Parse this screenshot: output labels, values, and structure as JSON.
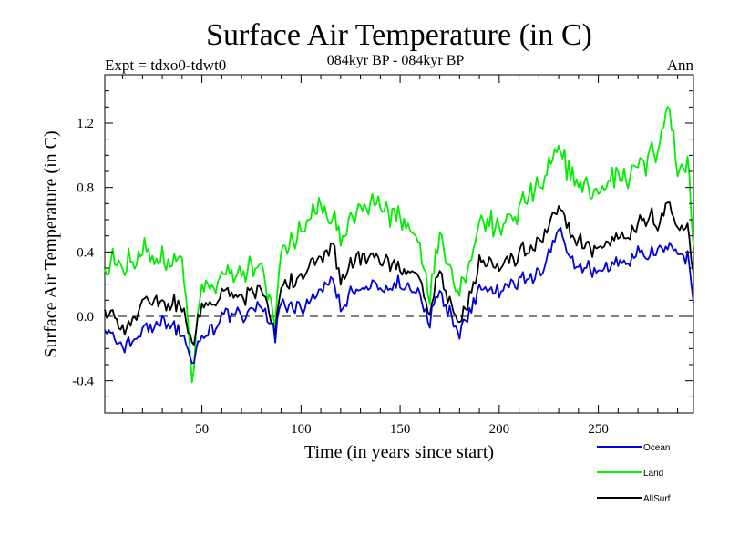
{
  "chart_data": {
    "type": "line",
    "title": "Surface Air Temperature (in C)",
    "subtitle": "084kyr BP - 084kyr BP",
    "left_label": "Expt = tdxo0-tdwt0",
    "right_label": "Ann",
    "xlabel": "Time (in years since start)",
    "ylabel": "Surface Air Temperature (in C)",
    "xlim": [
      1,
      298
    ],
    "ylim": [
      -0.6,
      1.5
    ],
    "x_ticks": [
      50,
      100,
      150,
      200,
      250
    ],
    "y_ticks": [
      -0.4,
      0.0,
      0.4,
      0.8,
      1.2
    ],
    "y_tick_labels": [
      "-0.4",
      "0.0",
      "0.4",
      "0.8",
      "1.2"
    ],
    "zero_line": "dashed",
    "legend_placement": "bottom-right",
    "anchors": {
      "x": [
        1,
        10,
        20,
        30,
        40,
        45,
        50,
        60,
        70,
        80,
        87,
        90,
        100,
        110,
        115,
        120,
        130,
        140,
        150,
        160,
        165,
        170,
        180,
        190,
        200,
        210,
        220,
        230,
        240,
        250,
        260,
        270,
        275,
        280,
        285,
        290,
        295,
        298
      ],
      "series": [
        {
          "name": "Ocean",
          "color": "#0000dd",
          "values": [
            -0.05,
            -0.2,
            -0.12,
            -0.02,
            -0.1,
            -0.3,
            -0.15,
            -0.02,
            0.02,
            0.06,
            -0.15,
            0.08,
            0.05,
            0.14,
            0.22,
            0.08,
            0.15,
            0.18,
            0.2,
            0.15,
            0.0,
            0.18,
            -0.1,
            0.2,
            0.15,
            0.22,
            0.25,
            0.5,
            0.3,
            0.28,
            0.35,
            0.4,
            0.35,
            0.45,
            0.42,
            0.4,
            0.38,
            0.12
          ]
        },
        {
          "name": "Land",
          "color": "#00ee00",
          "values": [
            0.35,
            0.3,
            0.35,
            0.38,
            0.35,
            -0.4,
            0.15,
            0.2,
            0.3,
            0.28,
            -0.1,
            0.4,
            0.52,
            0.7,
            0.55,
            0.52,
            0.65,
            0.7,
            0.6,
            0.48,
            0.12,
            0.55,
            0.15,
            0.62,
            0.55,
            0.65,
            0.8,
            1.0,
            0.82,
            0.75,
            0.9,
            0.92,
            0.95,
            1.05,
            1.35,
            0.95,
            0.95,
            0.45
          ]
        },
        {
          "name": "AllSurf",
          "color": "#000000",
          "values": [
            0.08,
            -0.1,
            0.05,
            0.12,
            0.05,
            -0.2,
            0.05,
            0.12,
            0.12,
            0.15,
            -0.12,
            0.18,
            0.25,
            0.35,
            0.45,
            0.25,
            0.35,
            0.35,
            0.3,
            0.25,
            0.05,
            0.3,
            -0.05,
            0.35,
            0.3,
            0.38,
            0.45,
            0.65,
            0.45,
            0.42,
            0.5,
            0.55,
            0.6,
            0.6,
            0.7,
            0.58,
            0.55,
            0.25
          ]
        }
      ]
    },
    "noise_amplitude": [
      0.07,
      0.12,
      0.08
    ]
  }
}
